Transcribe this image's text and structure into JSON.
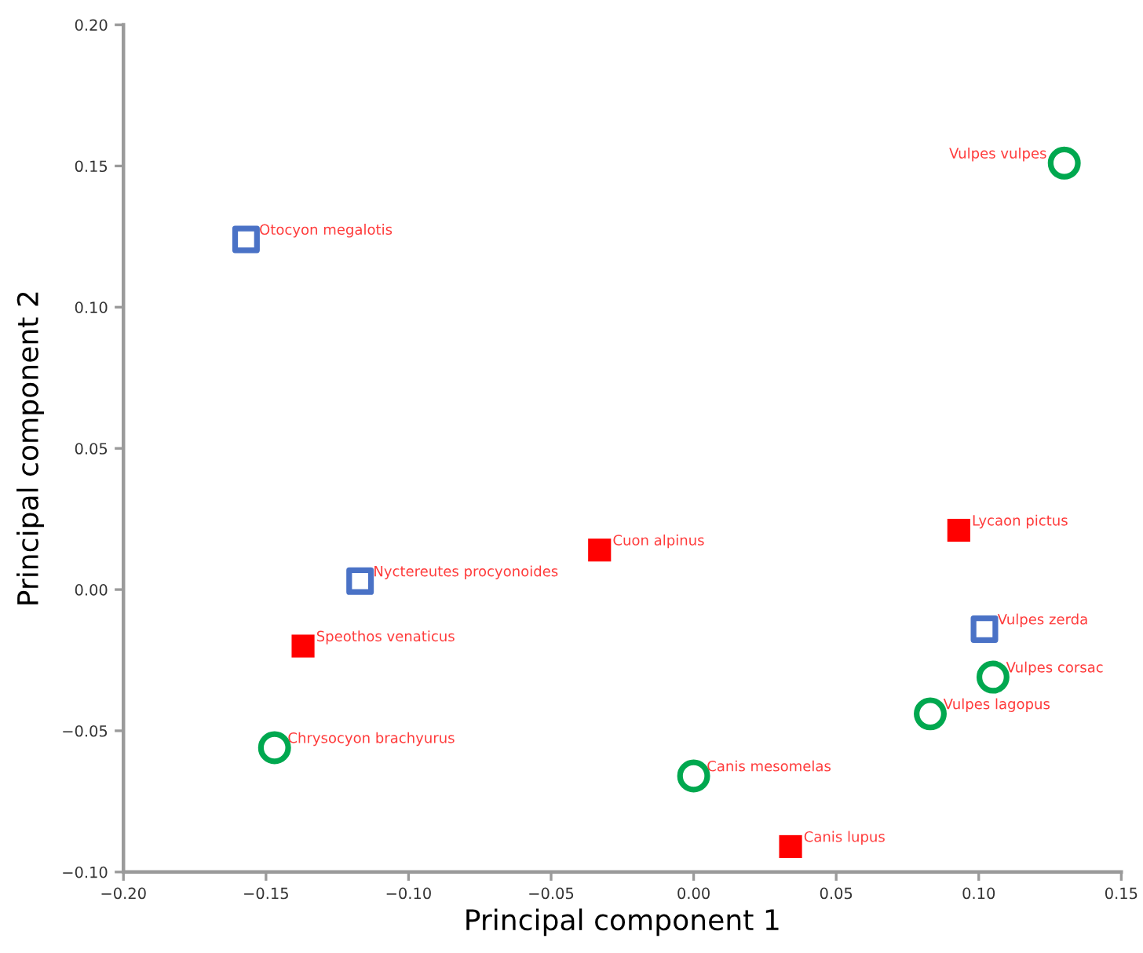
{
  "chart_data": {
    "type": "scatter",
    "xlabel": "Principal component 1",
    "ylabel": "Principal component 2",
    "xlim": [
      -0.2,
      0.15
    ],
    "ylim": [
      -0.1,
      0.2
    ],
    "xticks": [
      {
        "value": -0.2,
        "label": "−0.20"
      },
      {
        "value": -0.15,
        "label": "−0.15"
      },
      {
        "value": -0.1,
        "label": "−0.10"
      },
      {
        "value": -0.05,
        "label": "−0.05"
      },
      {
        "value": 0,
        "label": "0.00"
      },
      {
        "value": 0.05,
        "label": "0.05"
      },
      {
        "value": 0.1,
        "label": "0.10"
      },
      {
        "value": 0.15,
        "label": "0.15"
      }
    ],
    "yticks": [
      {
        "value": -0.1,
        "label": "−0.10"
      },
      {
        "value": -0.05,
        "label": "−0.05"
      },
      {
        "value": 0,
        "label": "0.00"
      },
      {
        "value": 0.05,
        "label": "0.05"
      },
      {
        "value": 0.1,
        "label": "0.10"
      },
      {
        "value": 0.15,
        "label": "0.15"
      },
      {
        "value": 0.2,
        "label": "0.20"
      }
    ],
    "series": [
      {
        "color": "#4a72c6",
        "marker": "square",
        "x": [
          -0.157,
          -0.117,
          0.102
        ],
        "values": [
          0.124,
          0.003,
          -0.014
        ]
      },
      {
        "color": "#ff0000",
        "marker": "square",
        "x": [
          -0.033,
          0.093,
          -0.137,
          0.034
        ],
        "values": [
          0.014,
          0.021,
          -0.02,
          -0.091
        ]
      },
      {
        "color": "#00a84f",
        "marker": "circle",
        "x": [
          0.13,
          0.105,
          0.083,
          0.0,
          -0.147
        ],
        "values": [
          0.151,
          -0.031,
          -0.044,
          -0.066,
          -0.056
        ]
      }
    ],
    "annotations": [
      {
        "text": "Otocyon megalotis",
        "x": -0.157,
        "y": 0.124
      },
      {
        "text": "Nyctereutes procyonoides",
        "x": -0.117,
        "y": 0.003
      },
      {
        "text": "Vulpes zerda",
        "x": 0.102,
        "y": -0.014
      },
      {
        "text": "Cuon alpinus",
        "x": -0.033,
        "y": 0.014
      },
      {
        "text": "Lycaon pictus",
        "x": 0.093,
        "y": 0.021
      },
      {
        "text": "Speothos venaticus",
        "x": -0.137,
        "y": -0.02
      },
      {
        "text": "Canis lupus",
        "x": 0.034,
        "y": -0.091
      },
      {
        "text": "Vulpes vulpes",
        "x": 0.13,
        "y": 0.151
      },
      {
        "text": "Vulpes corsac",
        "x": 0.105,
        "y": -0.031
      },
      {
        "text": "Vulpes lagopus",
        "x": 0.083,
        "y": -0.044
      },
      {
        "text": "Canis mesomelas",
        "x": 0.0,
        "y": -0.066
      },
      {
        "text": "Chrysocyon brachyurus",
        "x": -0.147,
        "y": -0.056
      }
    ]
  }
}
